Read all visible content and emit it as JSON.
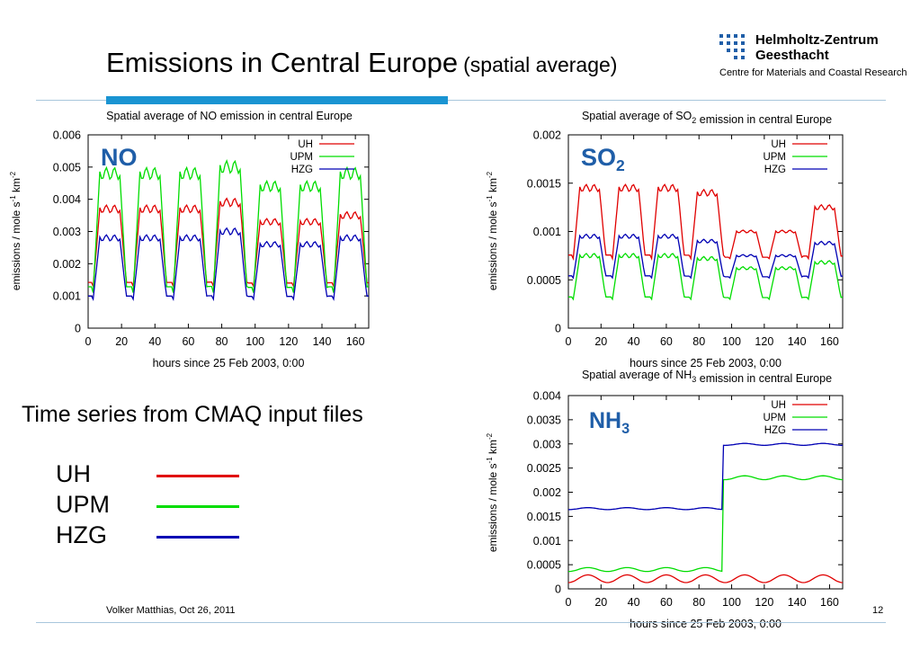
{
  "slide": {
    "title": "Emissions in Central Europe",
    "subtitle": "(spatial average)",
    "caption": "Time series from CMAQ input files",
    "footer": "Volker Matthias, Oct 26, 2011",
    "page_number": "12",
    "logo": {
      "line1": "Helmholtz-Zentrum",
      "line2": "Geesthacht",
      "line3": "Centre for Materials and Coastal Research"
    },
    "legend": [
      {
        "label": "UH",
        "color": "#e00000"
      },
      {
        "label": "UPM",
        "color": "#00dd00"
      },
      {
        "label": "HZG",
        "color": "#0000b4"
      }
    ],
    "colors": {
      "accent_bar": "#1a94d2",
      "label_blue": "#1f5ea8"
    }
  },
  "chart_data": [
    {
      "type": "line",
      "title": "Spatial average of NO emission in central Europe",
      "big_label": "NO",
      "xlabel": "hours since 25 Feb 2003, 0:00",
      "ylabel": "emissions / mole s-1 km-2",
      "xlim": [
        0,
        168
      ],
      "ylim": [
        0,
        0.006
      ],
      "xticks": [
        "0",
        "20",
        "40",
        "60",
        "80",
        "100",
        "120",
        "140",
        "160"
      ],
      "yticks": [
        "0",
        "0.001",
        "0.002",
        "0.003",
        "0.004",
        "0.005",
        "0.006"
      ],
      "x_step": 1,
      "legend": [
        "UH",
        "UPM",
        "HZG"
      ],
      "series": [
        {
          "name": "UH",
          "color": "#e00000",
          "pattern": "diurnal",
          "night": 0.0013,
          "day": [
            0.0037,
            0.0037,
            0.0037,
            0.0039,
            0.0033,
            0.0033,
            0.0035
          ]
        },
        {
          "name": "UPM",
          "color": "#00dd00",
          "pattern": "diurnal",
          "night": 0.0011,
          "day": [
            0.0048,
            0.0048,
            0.0048,
            0.005,
            0.0044,
            0.0044,
            0.0048
          ]
        },
        {
          "name": "HZG",
          "color": "#0000b4",
          "pattern": "diurnal",
          "night": 0.0009,
          "day": [
            0.0028,
            0.0028,
            0.0028,
            0.003,
            0.0026,
            0.0026,
            0.0028
          ]
        }
      ]
    },
    {
      "type": "line",
      "title": "Spatial average of SO2 emission in central Europe",
      "big_label": "SO2",
      "xlabel": "hours since 25 Feb 2003, 0:00",
      "ylabel": "emissions / mole s-1 km-2",
      "xlim": [
        0,
        168
      ],
      "ylim": [
        0,
        0.002
      ],
      "xticks": [
        "0",
        "20",
        "40",
        "60",
        "80",
        "100",
        "120",
        "140",
        "160"
      ],
      "yticks": [
        "0",
        "0.0005",
        "0.001",
        "0.0015",
        "0.002"
      ],
      "x_step": 1,
      "legend": [
        "UH",
        "UPM",
        "HZG"
      ],
      "series": [
        {
          "name": "UH",
          "color": "#e00000",
          "pattern": "diurnal",
          "night": 0.00072,
          "day": [
            0.00145,
            0.00145,
            0.00145,
            0.0014,
            0.001,
            0.001,
            0.00125
          ]
        },
        {
          "name": "UPM",
          "color": "#00dd00",
          "pattern": "diurnal",
          "night": 0.0003,
          "day": [
            0.00075,
            0.00075,
            0.00075,
            0.00072,
            0.00062,
            0.00062,
            0.00068
          ]
        },
        {
          "name": "HZG",
          "color": "#0000b4",
          "pattern": "diurnal",
          "night": 0.00052,
          "day": [
            0.00095,
            0.00095,
            0.00095,
            0.0009,
            0.00075,
            0.00075,
            0.00088
          ]
        }
      ]
    },
    {
      "type": "line",
      "title": "Spatial average of NH3 emission in central Europe",
      "big_label": "NH3",
      "xlabel": "hours since 25 Feb 2003, 0:00",
      "ylabel": "emissions / mole s-1 km-2",
      "xlim": [
        0,
        168
      ],
      "ylim": [
        0,
        0.004
      ],
      "xticks": [
        "0",
        "20",
        "40",
        "60",
        "80",
        "100",
        "120",
        "140",
        "160"
      ],
      "yticks": [
        "0",
        "0.0005",
        "0.001",
        "0.0015",
        "0.002",
        "0.0025",
        "0.003",
        "0.0035",
        "0.004"
      ],
      "x_step": 1,
      "legend": [
        "UH",
        "UPM",
        "HZG"
      ],
      "series": [
        {
          "name": "UH",
          "color": "#e00000",
          "pattern": "wave",
          "base": 0.00021,
          "amp": 8e-05
        },
        {
          "name": "UPM",
          "color": "#00dd00",
          "pattern": "step",
          "step_x": 95,
          "before": 0.0004,
          "after": 0.0023,
          "amp": 4e-05
        },
        {
          "name": "HZG",
          "color": "#0000b4",
          "pattern": "step",
          "step_x": 95,
          "before": 0.00166,
          "after": 0.00299,
          "amp": 2e-05
        }
      ]
    }
  ]
}
